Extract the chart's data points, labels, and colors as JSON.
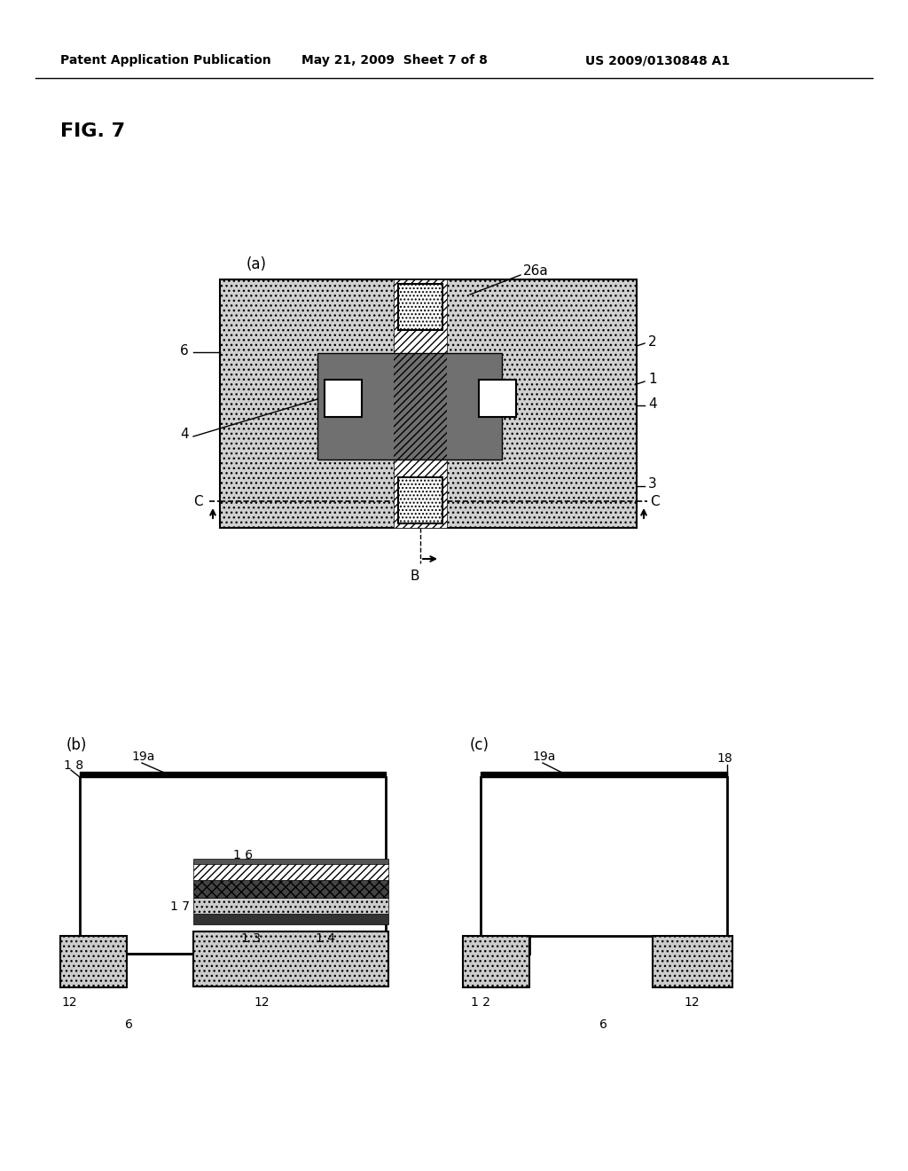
{
  "header_left": "Patent Application Publication",
  "header_center": "May 21, 2009  Sheet 7 of 8",
  "header_right": "US 2009/0130848 A1",
  "fig_label": "FIG. 7",
  "bg_color": "#ffffff",
  "black": "#000000",
  "dot_fill": "#cccccc",
  "dark_gray": "#555555",
  "mid_gray": "#888888",
  "light_gray": "#aaaaaa"
}
